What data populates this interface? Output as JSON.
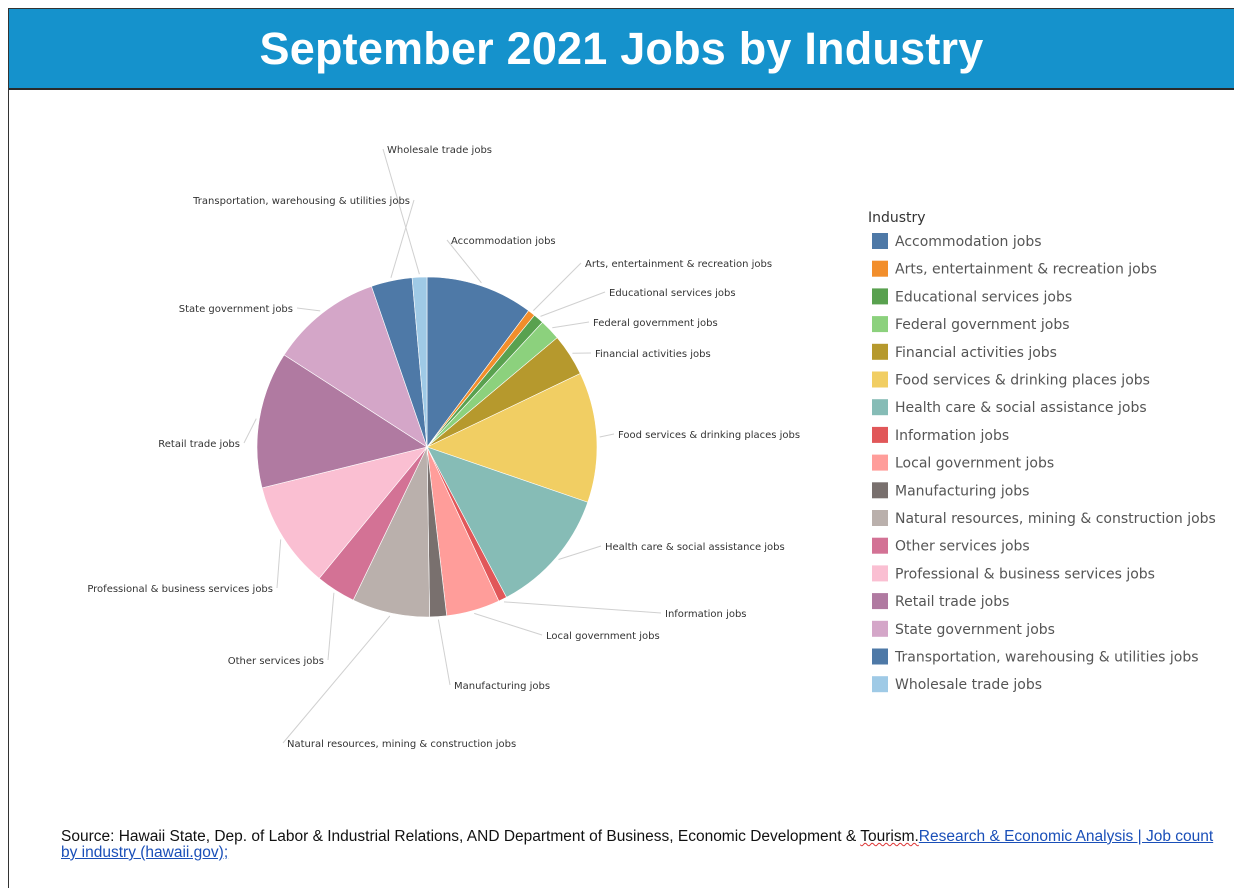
{
  "header": {
    "title": "September 2021 Jobs by Industry"
  },
  "legend_title": "Industry",
  "chart_data": {
    "type": "pie",
    "legend_title": "Industry",
    "legend_placement": "right",
    "slices": [
      {
        "label": "Accommodation jobs",
        "value": 10.2,
        "color": "#4e79a7"
      },
      {
        "label": "Arts, entertainment & recreation jobs",
        "value": 0.7,
        "color": "#f28e2b"
      },
      {
        "label": "Educational services jobs",
        "value": 1.0,
        "color": "#59a14f"
      },
      {
        "label": "Federal government jobs",
        "value": 2.0,
        "color": "#8cd17d"
      },
      {
        "label": "Financial activities jobs",
        "value": 4.0,
        "color": "#b6992d"
      },
      {
        "label": "Food services & drinking places jobs",
        "value": 12.4,
        "color": "#f1ce63"
      },
      {
        "label": "Health care & social assistance jobs",
        "value": 12.0,
        "color": "#86bcb6"
      },
      {
        "label": "Information jobs",
        "value": 0.8,
        "color": "#e15759"
      },
      {
        "label": "Local government jobs",
        "value": 5.1,
        "color": "#ff9d9a"
      },
      {
        "label": "Manufacturing jobs",
        "value": 1.6,
        "color": "#79706e"
      },
      {
        "label": "Natural resources, mining & construction jobs",
        "value": 7.4,
        "color": "#bab0ac"
      },
      {
        "label": "Other services jobs",
        "value": 3.8,
        "color": "#d37295"
      },
      {
        "label": "Professional & business services jobs",
        "value": 10.2,
        "color": "#fabfd2"
      },
      {
        "label": "Retail trade jobs",
        "value": 13.0,
        "color": "#b07aa1"
      },
      {
        "label": "State government jobs",
        "value": 10.6,
        "color": "#d4a6c8"
      },
      {
        "label": "Transportation, warehousing & utilities jobs",
        "value": 3.9,
        "color": "#4e79a7"
      },
      {
        "label": "Wholesale trade jobs",
        "value": 1.4,
        "color": "#9fcae6"
      }
    ]
  },
  "source": {
    "prefix": "Source:  Hawaii State, Dep. of Labor & Industrial Relations, AND Department of Business, Economic Development & ",
    "squiggle": "Tourism.",
    "link": "Research & Economic Analysis | Job count by industry (hawaii.gov);"
  }
}
